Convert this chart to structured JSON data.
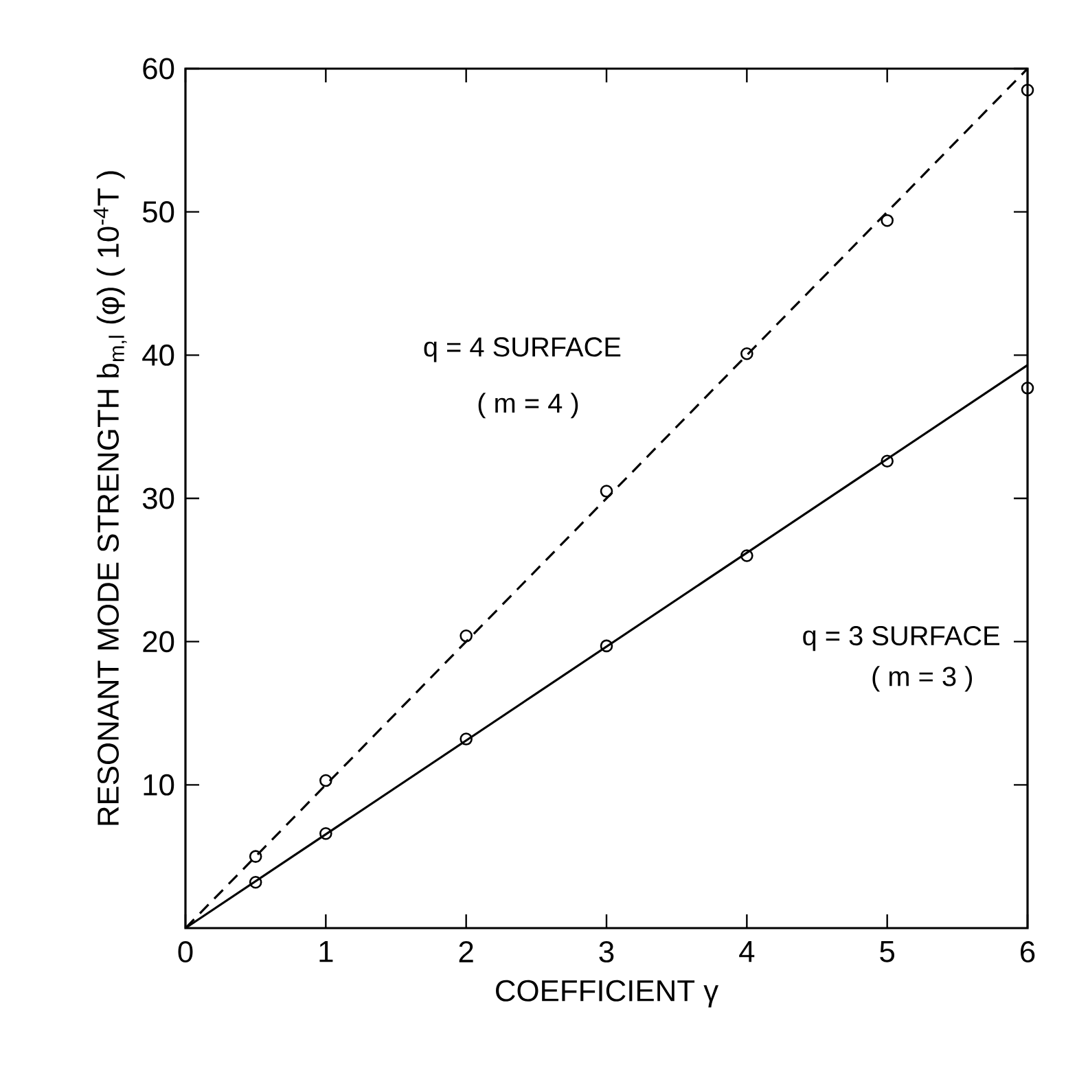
{
  "chart_data": {
    "type": "scatter",
    "xlabel": "COEFFICIENT γ",
    "ylabel": "RESONANT MODE STRENGTH b$_{m,l}$ (φ) ( 10$^{-4}$T )",
    "xlim": [
      0,
      6
    ],
    "ylim": [
      0,
      60
    ],
    "xticks": [
      0,
      1,
      2,
      3,
      4,
      5,
      6
    ],
    "yticks": [
      10,
      20,
      30,
      40,
      50,
      60
    ],
    "series": [
      {
        "type": "line",
        "x": [
          0,
          6
        ],
        "values": [
          0,
          60
        ],
        "color": "#000000",
        "line_style": "dashed",
        "marker": "none"
      },
      {
        "x": [
          0.5,
          1,
          2,
          3,
          4,
          5,
          6
        ],
        "values": [
          5.0,
          10.3,
          20.4,
          30.5,
          40.1,
          49.4,
          58.5
        ],
        "color": "#000000",
        "marker": "circle"
      },
      {
        "type": "line",
        "x": [
          0,
          6
        ],
        "values": [
          0,
          39.3
        ],
        "color": "#000000",
        "line_style": "solid",
        "marker": "none"
      },
      {
        "x": [
          0.5,
          1,
          2,
          3,
          4,
          5,
          6
        ],
        "values": [
          3.2,
          6.6,
          13.2,
          19.7,
          26.0,
          32.6,
          37.7
        ],
        "color": "#000000",
        "marker": "circle"
      }
    ],
    "annotations": [
      "q = 4  SURFACE",
      "( m = 4 )",
      "q = 3  SURFACE",
      "( m = 3 )"
    ]
  }
}
